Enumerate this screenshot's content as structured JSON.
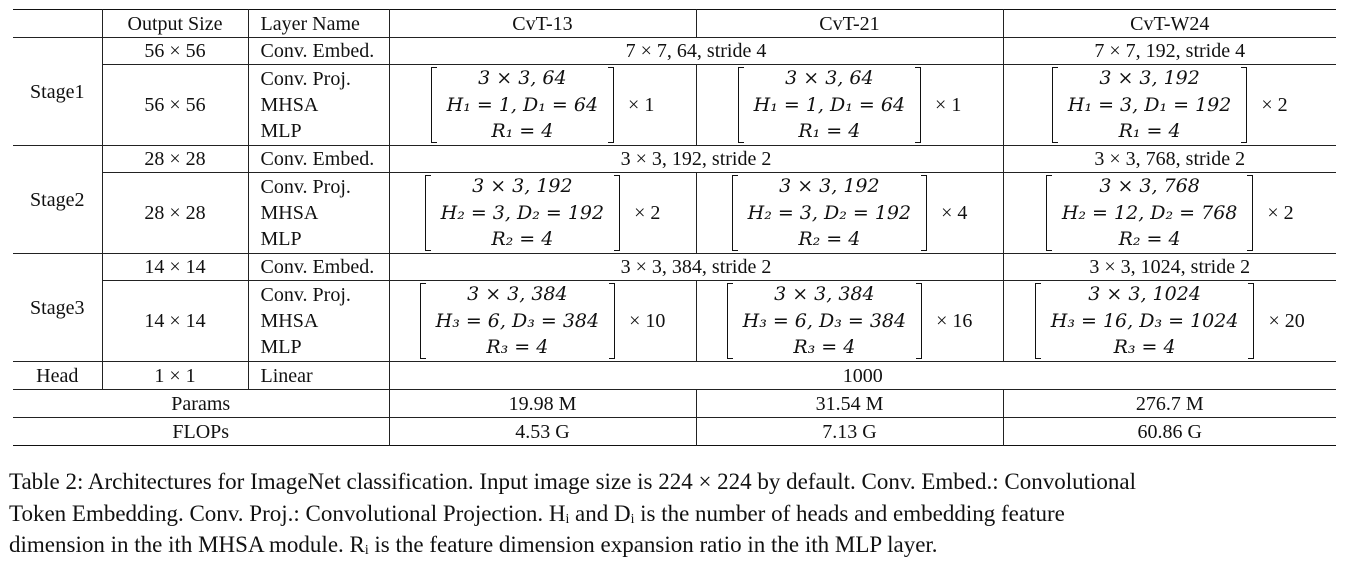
{
  "headers": [
    "",
    "Output Size",
    "Layer Name",
    "CvT-13",
    "CvT-21",
    "CvT-W24"
  ],
  "layer_names": [
    "Conv. Proj.",
    "MHSA",
    "MLP"
  ],
  "stages": [
    {
      "name": "Stage1",
      "embed_size": "56 × 56",
      "embed_layer": "Conv. Embed.",
      "embed_shared": "7 × 7, 64, stride 4",
      "embed_w24": "7 × 7, 192, stride 4",
      "block_size": "56 × 56",
      "blocks": [
        {
          "lines": [
            "3 × 3, 64",
            "H₁ = 1, D₁ = 64",
            "R₁ = 4"
          ],
          "repeat": "× 1"
        },
        {
          "lines": [
            "3 × 3, 64",
            "H₁ = 1, D₁ = 64",
            "R₁ = 4"
          ],
          "repeat": "× 1"
        },
        {
          "lines": [
            "3 × 3, 192",
            "H₁ = 3, D₁ = 192",
            "R₁ = 4"
          ],
          "repeat": "× 2"
        }
      ]
    },
    {
      "name": "Stage2",
      "embed_size": "28 × 28",
      "embed_layer": "Conv. Embed.",
      "embed_shared": "3 × 3, 192, stride 2",
      "embed_w24": "3 × 3, 768, stride 2",
      "block_size": "28 × 28",
      "blocks": [
        {
          "lines": [
            "3 × 3, 192",
            "H₂ = 3, D₂ = 192",
            "R₂ = 4"
          ],
          "repeat": "× 2"
        },
        {
          "lines": [
            "3 × 3, 192",
            "H₂ = 3, D₂ = 192",
            "R₂ = 4"
          ],
          "repeat": "× 4"
        },
        {
          "lines": [
            "3 × 3, 768",
            "H₂ = 12, D₂ = 768",
            "R₂ = 4"
          ],
          "repeat": "× 2"
        }
      ]
    },
    {
      "name": "Stage3",
      "embed_size": "14 × 14",
      "embed_layer": "Conv. Embed.",
      "embed_shared": "3 × 3, 384, stride 2",
      "embed_w24": "3 × 3, 1024, stride 2",
      "block_size": "14 × 14",
      "blocks": [
        {
          "lines": [
            "3 × 3, 384",
            "H₃ = 6, D₃ = 384",
            "R₃ = 4"
          ],
          "repeat": "× 10"
        },
        {
          "lines": [
            "3 × 3, 384",
            "H₃ = 6, D₃ = 384",
            "R₃ = 4"
          ],
          "repeat": "× 16"
        },
        {
          "lines": [
            "3 × 3, 1024",
            "H₃ = 16, D₃ = 1024",
            "R₃ = 4"
          ],
          "repeat": "× 20"
        }
      ]
    }
  ],
  "head": {
    "name": "Head",
    "size": "1 × 1",
    "layer": "Linear",
    "value": "1000"
  },
  "params": {
    "label": "Params",
    "values": [
      "19.98 M",
      "31.54 M",
      "276.7 M"
    ]
  },
  "flops": {
    "label": "FLOPs",
    "values": [
      "4.53 G",
      "7.13 G",
      "60.86 G"
    ]
  },
  "caption": {
    "line1": "Table 2: Architectures for ImageNet classification. Input image size is 224 × 224 by default. Conv. Embed.: Convolutional",
    "line2": "Token Embedding. Conv. Proj.: Convolutional Projection. Hᵢ and Dᵢ is the number of heads and embedding feature",
    "line3": "dimension in the ith MHSA module. Rᵢ is the feature dimension expansion ratio in the ith MLP layer."
  }
}
